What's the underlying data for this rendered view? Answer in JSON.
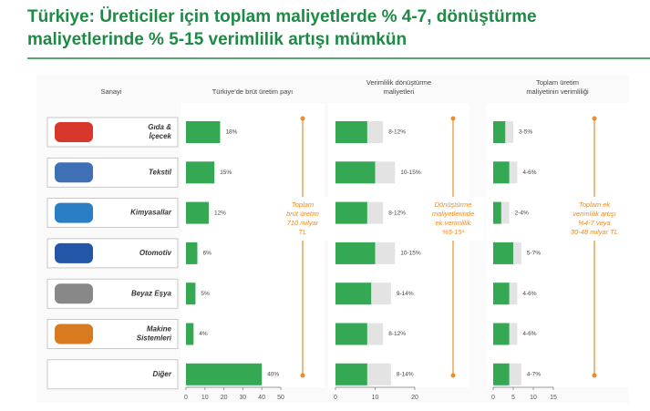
{
  "title": [
    "Türkiye: Üreticiler için toplam maliyetlerde % 4-7, dönüştürme",
    "maliyetlerinde % 5-15 verimlilik artışı mümkün"
  ],
  "category_header": "Sanayi",
  "categories": [
    [
      "Gıda &",
      "İçecek"
    ],
    [
      "Tekstil"
    ],
    [
      "Kimyasallar"
    ],
    [
      "Otomotiv"
    ],
    [
      "Beyaz Eşya"
    ],
    [
      "Makine",
      "Sistemleri"
    ],
    [
      "Diğer"
    ]
  ],
  "chart_data": [
    {
      "type": "bar",
      "title": [
        "Türkiye'de brüt üretim payı"
      ],
      "values": [
        18,
        15,
        12,
        6,
        5,
        4,
        40
      ],
      "value_labels": [
        "18%",
        "15%",
        "12%",
        "6%",
        "5%",
        "4%",
        "40%"
      ],
      "xlim": [
        0,
        50
      ],
      "xticks": [
        0,
        10,
        20,
        30,
        40,
        50
      ],
      "color": "#34a853",
      "annotation": [
        "Toplam",
        "brüt üretim",
        "710 milyar",
        "TL"
      ]
    },
    {
      "type": "range",
      "title": [
        "Verimlilik dönüştürme",
        "maliyetleri"
      ],
      "low": [
        8,
        10,
        8,
        10,
        9,
        8,
        8
      ],
      "high": [
        12,
        15,
        12,
        15,
        14,
        12,
        14
      ],
      "value_labels": [
        "8-12%",
        "10-15%",
        "8-12%",
        "10-15%",
        "9-14%",
        "8-12%",
        "8-14%"
      ],
      "xlim": [
        0,
        20
      ],
      "xticks": [
        0,
        10,
        20
      ],
      "color": "#34a853",
      "range_color": "#e3e3e3",
      "annotation": [
        "Dönüştürme",
        "maliyetlerinde",
        "ek verimlilik",
        "%5-15¹"
      ]
    },
    {
      "type": "range",
      "title": [
        "Toplam üretim",
        "maliyetinin verimliliği"
      ],
      "low": [
        3,
        4,
        2,
        5,
        4,
        4,
        4
      ],
      "high": [
        5,
        6,
        4,
        7,
        6,
        6,
        7
      ],
      "value_labels": [
        "3-5%",
        "4-6%",
        "2-4%",
        "5-7%",
        "4-6%",
        "4-6%",
        "4-7%"
      ],
      "xlim": [
        0,
        15
      ],
      "xticks": [
        0,
        5,
        10,
        15
      ],
      "color": "#34a853",
      "range_color": "#e3e3e3",
      "annotation": [
        "Toplam ek",
        "verimlilik artışı",
        "%4-7 veya",
        "30-48 milyar TL"
      ]
    }
  ]
}
